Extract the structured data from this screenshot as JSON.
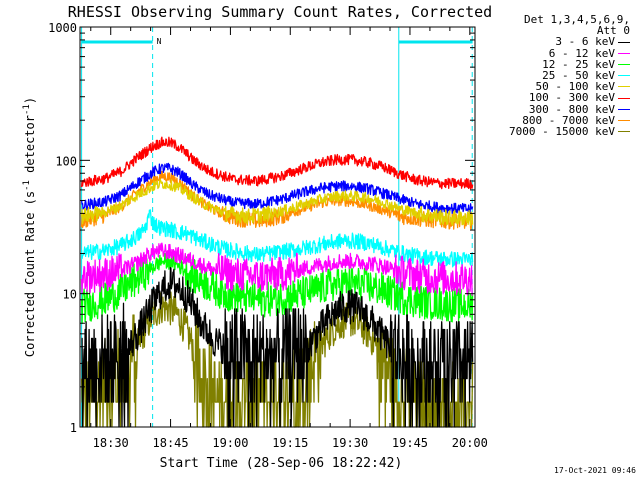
{
  "chart_data": {
    "type": "line",
    "title": "RHESSI Observing Summary Count Rates, Corrected",
    "xlabel": "Start Time (28-Sep-06 18:22:42)",
    "ylabel": "Corrected Count Rate (s",
    "ylabel_sup1": "-1",
    "ylabel_mid": " detector",
    "ylabel_sup2": "-1",
    "ylabel_end": ")",
    "yscale": "log",
    "ylim": [
      1,
      1000
    ],
    "xlim": [
      -0.4,
      98.6
    ],
    "x_unit": "minutes after 18:22:42",
    "xticks": [
      {
        "x": 7.3,
        "label": "18:30"
      },
      {
        "x": 22.3,
        "label": "18:45"
      },
      {
        "x": 37.3,
        "label": "19:00"
      },
      {
        "x": 52.3,
        "label": "19:15"
      },
      {
        "x": 67.3,
        "label": "19:30"
      },
      {
        "x": 82.3,
        "label": "19:45"
      },
      {
        "x": 97.3,
        "label": "20:00"
      }
    ],
    "yticks": [
      {
        "y": 1,
        "label": "1"
      },
      {
        "y": 10,
        "label": "10"
      },
      {
        "y": 100,
        "label": "100"
      },
      {
        "y": 1000,
        "label": "1000"
      }
    ],
    "legend_header": [
      "Det 1,3,4,5,6,9,",
      "Att 0"
    ],
    "night_bars": [
      [
        0,
        17.8
      ],
      [
        79.5,
        98.0
      ]
    ],
    "night_bar_color": "#00e5ee",
    "night_marker_label": "N",
    "night_marker_x": 17.8,
    "vlines_dashed": [
      17.8,
      97.9
    ],
    "vlines_solid": [
      0,
      79.5
    ],
    "series": [
      {
        "name": "3 - 6 keV",
        "color": "#000000",
        "x": [
          0,
          4,
          8,
          12,
          14,
          16,
          18,
          20,
          22,
          24,
          26,
          28,
          30,
          34,
          40,
          46,
          52,
          56,
          58,
          60,
          62,
          64,
          66,
          68,
          70,
          72,
          74,
          76,
          78,
          82,
          88,
          94,
          98
        ],
        "y": [
          2.8,
          3.0,
          3.4,
          4.0,
          5.0,
          6.5,
          8.5,
          10.5,
          12.0,
          11.5,
          10.0,
          8.0,
          6.0,
          4.2,
          3.5,
          3.4,
          3.5,
          3.8,
          4.5,
          5.5,
          6.5,
          7.5,
          8.0,
          8.0,
          7.5,
          6.5,
          5.5,
          4.5,
          3.8,
          3.2,
          3.0,
          3.0,
          3.0
        ]
      },
      {
        "name": "6 - 12 keV",
        "color": "#ff00ff",
        "x": [
          0,
          6,
          10,
          14,
          16,
          18,
          20,
          22,
          24,
          26,
          28,
          32,
          38,
          44,
          50,
          56,
          60,
          64,
          68,
          72,
          76,
          80,
          86,
          92,
          98
        ],
        "y": [
          13.5,
          14.0,
          15.0,
          17.0,
          19.0,
          20.5,
          21.0,
          20.5,
          19.5,
          18.5,
          17.5,
          15.5,
          14.0,
          13.5,
          14.0,
          15.5,
          16.5,
          17.5,
          17.5,
          17.0,
          16.0,
          14.5,
          13.5,
          13.0,
          13.0
        ]
      },
      {
        "name": "12 - 25 keV",
        "color": "#00ff00",
        "x": [
          0,
          6,
          10,
          14,
          18,
          20,
          22,
          24,
          26,
          28,
          32,
          36,
          40,
          46,
          52,
          58,
          62,
          66,
          70,
          74,
          78,
          82,
          88,
          94,
          98
        ],
        "y": [
          8.0,
          9.0,
          10.5,
          13.0,
          16.0,
          17.5,
          17.5,
          16.5,
          15.0,
          13.5,
          11.5,
          10.0,
          9.5,
          9.0,
          9.5,
          10.5,
          11.5,
          12.0,
          11.8,
          11.0,
          10.0,
          9.0,
          8.5,
          8.2,
          8.2
        ]
      },
      {
        "name": "25 - 50 keV",
        "color": "#00ffff",
        "x": [
          0,
          6,
          10,
          14,
          16,
          17,
          18,
          19,
          20,
          22,
          24,
          26,
          30,
          36,
          44,
          50,
          56,
          62,
          66,
          70,
          74,
          78,
          82,
          88,
          94,
          98
        ],
        "y": [
          20.0,
          21.0,
          23.0,
          27.0,
          31.0,
          40.0,
          34.0,
          32.0,
          31.0,
          30.5,
          29.0,
          28.5,
          25.0,
          21.5,
          19.5,
          20.5,
          22.0,
          24.0,
          25.0,
          24.5,
          23.0,
          21.0,
          19.5,
          18.5,
          18.0,
          18.0
        ]
      },
      {
        "name": "50 - 100 keV",
        "color": "#e0d000",
        "x": [
          0,
          6,
          10,
          14,
          18,
          20,
          22,
          24,
          26,
          30,
          36,
          42,
          48,
          54,
          60,
          64,
          68,
          72,
          76,
          80,
          86,
          92,
          98
        ],
        "y": [
          38.0,
          41.0,
          46.0,
          55.0,
          64.0,
          67.0,
          66.0,
          63.0,
          58.0,
          48.0,
          40.0,
          38.0,
          40.0,
          45.0,
          51.0,
          54.0,
          54.0,
          52.0,
          48.0,
          43.0,
          39.0,
          37.0,
          37.0
        ]
      },
      {
        "name": "100 - 300 keV",
        "color": "#ff0000",
        "x": [
          0,
          6,
          10,
          14,
          18,
          20,
          22,
          24,
          26,
          28,
          32,
          38,
          44,
          50,
          56,
          60,
          64,
          68,
          72,
          76,
          80,
          84,
          90,
          98
        ],
        "y": [
          68.0,
          73.0,
          83.0,
          105.0,
          128.0,
          136.0,
          136.0,
          128.0,
          115.0,
          100.0,
          83.0,
          72.0,
          70.0,
          76.0,
          88.0,
          96.0,
          101.0,
          101.0,
          96.0,
          88.0,
          78.0,
          71.0,
          67.0,
          67.0
        ]
      },
      {
        "name": "300 - 800 keV",
        "color": "#0000ff",
        "x": [
          0,
          6,
          10,
          14,
          18,
          20,
          22,
          24,
          26,
          28,
          32,
          38,
          44,
          50,
          56,
          60,
          64,
          68,
          72,
          76,
          80,
          84,
          90,
          98
        ],
        "y": [
          46.0,
          49.0,
          55.0,
          68.0,
          82.0,
          87.0,
          87.0,
          82.0,
          74.0,
          65.0,
          55.0,
          48.0,
          47.0,
          51.0,
          58.0,
          62.0,
          64.0,
          64.0,
          61.0,
          56.0,
          51.0,
          47.0,
          44.0,
          43.0
        ]
      },
      {
        "name": "800 - 7000 keV",
        "color": "#ff8c00",
        "x": [
          0,
          6,
          10,
          14,
          18,
          20,
          22,
          24,
          26,
          28,
          32,
          38,
          44,
          50,
          56,
          60,
          64,
          68,
          72,
          76,
          80,
          86,
          92,
          98
        ],
        "y": [
          35.0,
          39.0,
          45.0,
          58.0,
          71.0,
          76.0,
          75.0,
          70.0,
          62.0,
          54.0,
          44.0,
          37.0,
          35.0,
          38.0,
          44.0,
          48.0,
          50.0,
          49.0,
          46.0,
          42.0,
          38.0,
          36.0,
          35.0,
          35.0
        ]
      },
      {
        "name": "7000 - 15000 keV",
        "color": "#808000",
        "x": [
          0,
          4,
          8,
          12,
          14,
          16,
          18,
          20,
          22,
          24,
          26,
          28,
          30,
          32,
          34,
          38,
          44,
          50,
          56,
          58,
          60,
          62,
          64,
          66,
          68,
          70,
          72,
          74,
          76,
          78,
          80,
          86,
          92,
          98
        ],
        "y": [
          1.5,
          1.8,
          2.2,
          3.0,
          4.0,
          5.5,
          7.0,
          8.0,
          7.8,
          7.0,
          5.5,
          4.0,
          3.0,
          2.2,
          1.6,
          1.5,
          1.6,
          1.8,
          2.3,
          3.0,
          4.0,
          5.0,
          5.8,
          6.3,
          6.3,
          5.8,
          5.0,
          4.0,
          3.0,
          2.2,
          1.7,
          1.5,
          1.4,
          1.4
        ]
      }
    ]
  },
  "timestamp": "17-Oct-2021 09:46"
}
